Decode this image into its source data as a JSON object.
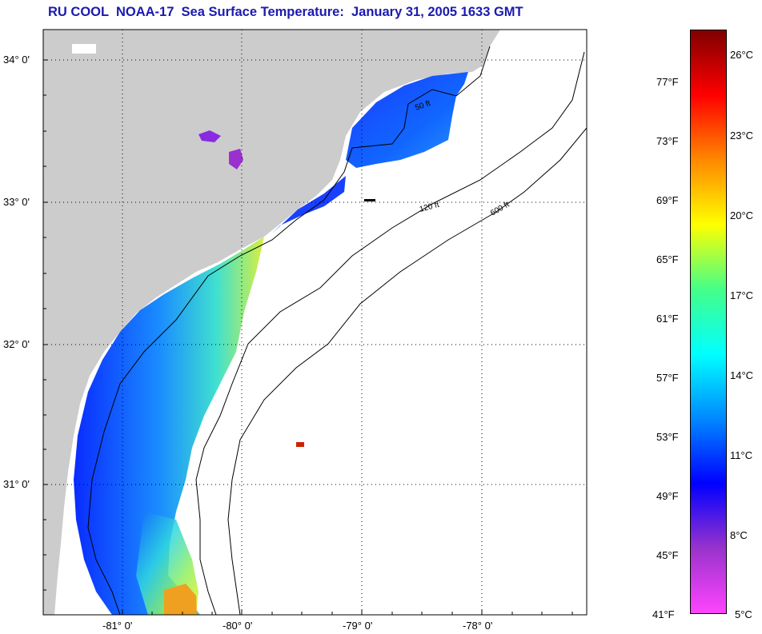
{
  "title": "RU COOL  NOAA-17  Sea Surface Temperature:  January 31, 2005 1633 GMT",
  "map": {
    "lat_labels": [
      "34° 0'",
      "33° 0'",
      "32° 0'",
      "31° 0'"
    ],
    "lon_labels": [
      "-81° 0'",
      "-80° 0'",
      "-79° 0'",
      "-78° 0'"
    ],
    "isobath_labels": [
      "50 ft",
      "120 ft",
      "600 ft"
    ],
    "colors": {
      "land": "#cccccc",
      "water_nodata": "#ffffff",
      "gridline": "#000000"
    }
  },
  "colorbar": {
    "fahrenheit_labels": [
      "77°F",
      "73°F",
      "69°F",
      "65°F",
      "61°F",
      "57°F",
      "53°F",
      "49°F",
      "45°F",
      "41°F"
    ],
    "celsius_labels": [
      "26°C",
      "23°C",
      "20°C",
      "17°C",
      "14°C",
      "11°C",
      "8°C",
      "5°C"
    ],
    "colors": [
      "#ff44ff",
      "#9933cc",
      "#0000ff",
      "#0088ff",
      "#00ffff",
      "#44ff88",
      "#ffff00",
      "#ff8800",
      "#ff0000",
      "#800000"
    ]
  }
}
